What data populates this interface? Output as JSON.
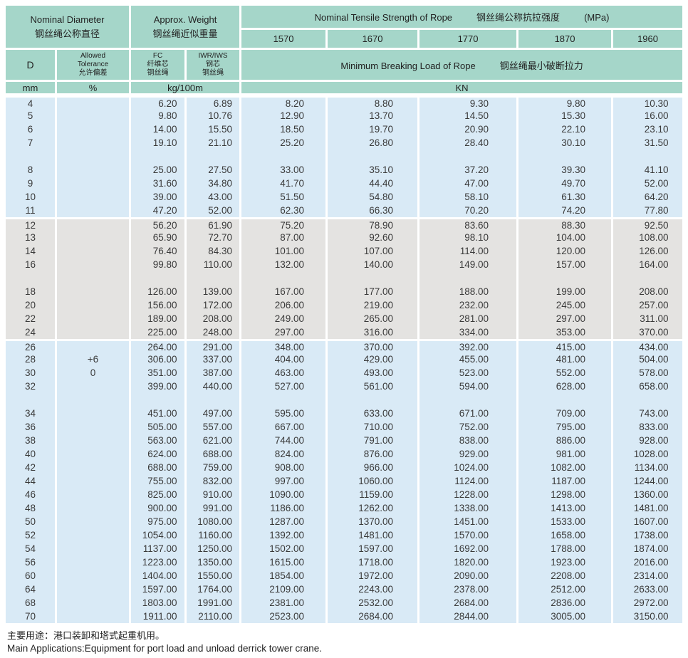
{
  "colors": {
    "header_teal": "#a5d6c9",
    "band_blue": "#d9eaf6",
    "band_gray": "#e4e3e1",
    "separator": "#ffffff",
    "text": "#333333"
  },
  "header": {
    "nominal_diameter_en": "Nominal Diameter",
    "nominal_diameter_zh": "钢丝绳公称直径",
    "approx_weight_en": "Approx. Weight",
    "approx_weight_zh": "钢丝绳近似重量",
    "tensile_strength_en": "Nominal Tensile Strength of Rope",
    "tensile_strength_zh": "钢丝绳公称抗拉强度",
    "tensile_strength_unit": "(MPa)",
    "strength_grades": [
      "1570",
      "1670",
      "1770",
      "1870",
      "1960"
    ],
    "d_label": "D",
    "tolerance_lines": [
      "Allowed",
      "Tolerance",
      "允许偏差"
    ],
    "fc_lines": [
      "FC",
      "纤维芯",
      "钢丝绳"
    ],
    "iwr_lines": [
      "IWR/IWS",
      "钢芯",
      "钢丝绳"
    ],
    "breaking_load_en": "Minimum Breaking Load of Rope",
    "breaking_load_zh": "钢丝绳最小破断拉力",
    "unit_d": "mm",
    "unit_tolerance": "%",
    "unit_weight": "kg/100m",
    "unit_load": "KN"
  },
  "tolerance": {
    "upper": "+6",
    "lower": "0"
  },
  "bands": [
    {
      "color": "blue",
      "subgroups": [
        {
          "rows": [
            [
              "4",
              "",
              "6.20",
              "6.89",
              "8.20",
              "8.80",
              "9.30",
              "9.80",
              "10.30"
            ],
            [
              "5",
              "",
              "9.80",
              "10.76",
              "12.90",
              "13.70",
              "14.50",
              "15.30",
              "16.00"
            ],
            [
              "6",
              "",
              "14.00",
              "15.50",
              "18.50",
              "19.70",
              "20.90",
              "22.10",
              "23.10"
            ],
            [
              "7",
              "",
              "19.10",
              "21.10",
              "25.20",
              "26.80",
              "28.40",
              "30.10",
              "31.50"
            ]
          ]
        },
        {
          "rows": [
            [
              "8",
              "",
              "25.00",
              "27.50",
              "33.00",
              "35.10",
              "37.20",
              "39.30",
              "41.10"
            ],
            [
              "9",
              "",
              "31.60",
              "34.80",
              "41.70",
              "44.40",
              "47.00",
              "49.70",
              "52.00"
            ],
            [
              "10",
              "",
              "39.00",
              "43.00",
              "51.50",
              "54.80",
              "58.10",
              "61.30",
              "64.20"
            ],
            [
              "11",
              "",
              "47.20",
              "52.00",
              "62.30",
              "66.30",
              "70.20",
              "74.20",
              "77.80"
            ]
          ]
        }
      ]
    },
    {
      "color": "gray",
      "subgroups": [
        {
          "rows": [
            [
              "12",
              "",
              "56.20",
              "61.90",
              "75.20",
              "78.90",
              "83.60",
              "88.30",
              "92.50"
            ],
            [
              "13",
              "",
              "65.90",
              "72.70",
              "87.00",
              "92.60",
              "98.10",
              "104.00",
              "108.00"
            ],
            [
              "14",
              "",
              "76.40",
              "84.30",
              "101.00",
              "107.00",
              "114.00",
              "120.00",
              "126.00"
            ],
            [
              "16",
              "",
              "99.80",
              "110.00",
              "132.00",
              "140.00",
              "149.00",
              "157.00",
              "164.00"
            ]
          ]
        },
        {
          "rows": [
            [
              "18",
              "",
              "126.00",
              "139.00",
              "167.00",
              "177.00",
              "188.00",
              "199.00",
              "208.00"
            ],
            [
              "20",
              "",
              "156.00",
              "172.00",
              "206.00",
              "219.00",
              "232.00",
              "245.00",
              "257.00"
            ],
            [
              "22",
              "",
              "189.00",
              "208.00",
              "249.00",
              "265.00",
              "281.00",
              "297.00",
              "311.00"
            ],
            [
              "24",
              "",
              "225.00",
              "248.00",
              "297.00",
              "316.00",
              "334.00",
              "353.00",
              "370.00"
            ]
          ]
        }
      ]
    },
    {
      "color": "blue",
      "subgroups": [
        {
          "rows": [
            [
              "26",
              "",
              "264.00",
              "291.00",
              "348.00",
              "370.00",
              "392.00",
              "415.00",
              "434.00"
            ],
            [
              "28",
              "+6",
              "306.00",
              "337.00",
              "404.00",
              "429.00",
              "455.00",
              "481.00",
              "504.00"
            ],
            [
              "30",
              "0",
              "351.00",
              "387.00",
              "463.00",
              "493.00",
              "523.00",
              "552.00",
              "578.00"
            ],
            [
              "32",
              "",
              "399.00",
              "440.00",
              "527.00",
              "561.00",
              "594.00",
              "628.00",
              "658.00"
            ]
          ]
        },
        {
          "rows": [
            [
              "34",
              "",
              "451.00",
              "497.00",
              "595.00",
              "633.00",
              "671.00",
              "709.00",
              "743.00"
            ],
            [
              "36",
              "",
              "505.00",
              "557.00",
              "667.00",
              "710.00",
              "752.00",
              "795.00",
              "833.00"
            ],
            [
              "38",
              "",
              "563.00",
              "621.00",
              "744.00",
              "791.00",
              "838.00",
              "886.00",
              "928.00"
            ],
            [
              "40",
              "",
              "624.00",
              "688.00",
              "824.00",
              "876.00",
              "929.00",
              "981.00",
              "1028.00"
            ],
            [
              "42",
              "",
              "688.00",
              "759.00",
              "908.00",
              "966.00",
              "1024.00",
              "1082.00",
              "1134.00"
            ],
            [
              "44",
              "",
              "755.00",
              "832.00",
              "997.00",
              "1060.00",
              "1124.00",
              "1187.00",
              "1244.00"
            ],
            [
              "46",
              "",
              "825.00",
              "910.00",
              "1090.00",
              "1159.00",
              "1228.00",
              "1298.00",
              "1360.00"
            ],
            [
              "48",
              "",
              "900.00",
              "991.00",
              "1186.00",
              "1262.00",
              "1338.00",
              "1413.00",
              "1481.00"
            ],
            [
              "50",
              "",
              "975.00",
              "1080.00",
              "1287.00",
              "1370.00",
              "1451.00",
              "1533.00",
              "1607.00"
            ],
            [
              "52",
              "",
              "1054.00",
              "1160.00",
              "1392.00",
              "1481.00",
              "1570.00",
              "1658.00",
              "1738.00"
            ],
            [
              "54",
              "",
              "1137.00",
              "1250.00",
              "1502.00",
              "1597.00",
              "1692.00",
              "1788.00",
              "1874.00"
            ],
            [
              "56",
              "",
              "1223.00",
              "1350.00",
              "1615.00",
              "1718.00",
              "1820.00",
              "1923.00",
              "2016.00"
            ],
            [
              "60",
              "",
              "1404.00",
              "1550.00",
              "1854.00",
              "1972.00",
              "2090.00",
              "2208.00",
              "2314.00"
            ],
            [
              "64",
              "",
              "1597.00",
              "1764.00",
              "2109.00",
              "2243.00",
              "2378.00",
              "2512.00",
              "2633.00"
            ],
            [
              "68",
              "",
              "1803.00",
              "1991.00",
              "2381.00",
              "2532.00",
              "2684.00",
              "2836.00",
              "2972.00"
            ],
            [
              "70",
              "",
              "1911.00",
              "2110.00",
              "2523.00",
              "2684.00",
              "2844.00",
              "3005.00",
              "3150.00"
            ]
          ]
        }
      ]
    }
  ],
  "footer": {
    "zh": "主要用途：港口装卸和塔式起重机用。",
    "en": "Main Applications:Equipment for port load and unload derrick tower crane."
  }
}
